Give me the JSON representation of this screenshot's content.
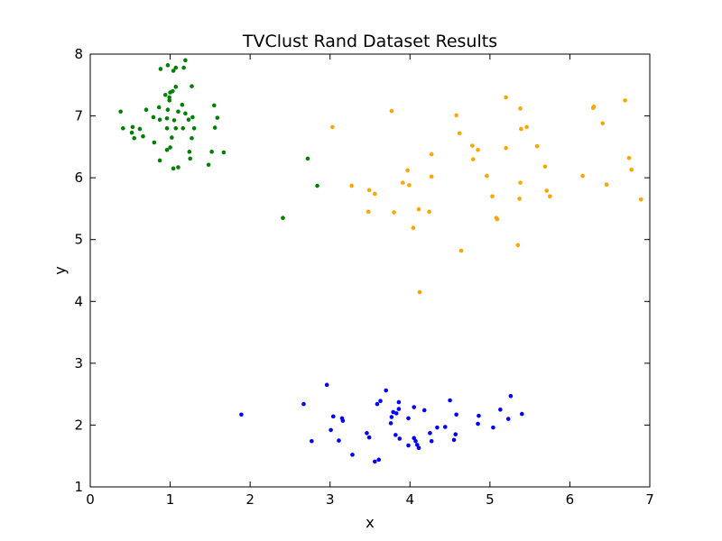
{
  "chart_data": {
    "type": "scatter",
    "title": "TVClust Rand Dataset Results",
    "xlabel": "x",
    "ylabel": "y",
    "xlim": [
      0,
      7
    ],
    "ylim": [
      1,
      8
    ],
    "xticks": [
      "0",
      "1",
      "2",
      "3",
      "4",
      "5",
      "6",
      "7"
    ],
    "yticks": [
      "1",
      "2",
      "3",
      "4",
      "5",
      "6",
      "7",
      "8"
    ],
    "grid": false,
    "legend": "none",
    "series": [
      {
        "color": "#008000",
        "points": [
          [
            0.88,
            7.76
          ],
          [
            0.97,
            7.82
          ],
          [
            1.07,
            7.78
          ],
          [
            1.17,
            7.78
          ],
          [
            1.19,
            7.9
          ],
          [
            1.04,
            7.73
          ],
          [
            1.27,
            7.48
          ],
          [
            1.07,
            7.47
          ],
          [
            1.03,
            7.4
          ],
          [
            0.99,
            7.3
          ],
          [
            0.94,
            7.34
          ],
          [
            1.0,
            7.38
          ],
          [
            0.38,
            7.07
          ],
          [
            0.7,
            7.1
          ],
          [
            0.86,
            7.14
          ],
          [
            0.97,
            7.1
          ],
          [
            0.99,
            7.25
          ],
          [
            1.1,
            7.07
          ],
          [
            1.15,
            7.18
          ],
          [
            1.19,
            7.04
          ],
          [
            1.28,
            6.98
          ],
          [
            1.55,
            7.17
          ],
          [
            1.59,
            6.97
          ],
          [
            0.79,
            6.98
          ],
          [
            0.87,
            6.94
          ],
          [
            0.96,
            6.96
          ],
          [
            1.05,
            6.93
          ],
          [
            1.23,
            6.94
          ],
          [
            0.41,
            6.8
          ],
          [
            0.53,
            6.82
          ],
          [
            0.62,
            6.79
          ],
          [
            0.52,
            6.73
          ],
          [
            0.55,
            6.64
          ],
          [
            0.66,
            6.67
          ],
          [
            0.96,
            6.8
          ],
          [
            1.07,
            6.8
          ],
          [
            1.16,
            6.8
          ],
          [
            1.3,
            6.8
          ],
          [
            1.56,
            6.81
          ],
          [
            0.8,
            6.57
          ],
          [
            1.02,
            6.65
          ],
          [
            1.27,
            6.64
          ],
          [
            0.96,
            6.45
          ],
          [
            1.0,
            6.49
          ],
          [
            1.24,
            6.42
          ],
          [
            1.52,
            6.42
          ],
          [
            1.67,
            6.41
          ],
          [
            0.87,
            6.28
          ],
          [
            1.25,
            6.31
          ],
          [
            1.48,
            6.21
          ],
          [
            1.04,
            6.15
          ],
          [
            1.1,
            6.17
          ],
          [
            2.72,
            6.31
          ],
          [
            2.84,
            5.87
          ],
          [
            2.41,
            5.35
          ]
        ]
      },
      {
        "color": "#ffa500",
        "points": [
          [
            5.2,
            7.3
          ],
          [
            3.77,
            7.08
          ],
          [
            5.38,
            7.12
          ],
          [
            6.29,
            7.13
          ],
          [
            6.3,
            7.15
          ],
          [
            6.69,
            7.25
          ],
          [
            4.58,
            7.01
          ],
          [
            3.03,
            6.82
          ],
          [
            5.46,
            6.82
          ],
          [
            5.39,
            6.79
          ],
          [
            6.41,
            6.88
          ],
          [
            4.62,
            6.72
          ],
          [
            4.78,
            6.52
          ],
          [
            4.85,
            6.45
          ],
          [
            5.59,
            6.51
          ],
          [
            5.2,
            6.48
          ],
          [
            4.27,
            6.38
          ],
          [
            4.79,
            6.3
          ],
          [
            6.74,
            6.32
          ],
          [
            5.69,
            6.18
          ],
          [
            6.77,
            6.13
          ],
          [
            3.97,
            6.12
          ],
          [
            4.27,
            6.02
          ],
          [
            4.96,
            6.03
          ],
          [
            6.16,
            6.03
          ],
          [
            3.91,
            5.92
          ],
          [
            3.99,
            5.88
          ],
          [
            5.38,
            5.92
          ],
          [
            6.46,
            5.89
          ],
          [
            3.27,
            5.87
          ],
          [
            3.49,
            5.8
          ],
          [
            3.56,
            5.74
          ],
          [
            5.71,
            5.79
          ],
          [
            5.75,
            5.7
          ],
          [
            5.03,
            5.7
          ],
          [
            5.37,
            5.66
          ],
          [
            6.89,
            5.65
          ],
          [
            4.11,
            5.49
          ],
          [
            3.48,
            5.45
          ],
          [
            3.8,
            5.44
          ],
          [
            4.24,
            5.45
          ],
          [
            5.08,
            5.35
          ],
          [
            5.09,
            5.33
          ],
          [
            4.04,
            5.19
          ],
          [
            5.35,
            4.91
          ],
          [
            4.64,
            4.82
          ],
          [
            4.12,
            4.15
          ]
        ]
      },
      {
        "color": "#0000ff",
        "points": [
          [
            1.89,
            2.17
          ],
          [
            2.67,
            2.34
          ],
          [
            2.96,
            2.65
          ],
          [
            3.04,
            2.14
          ],
          [
            3.15,
            2.11
          ],
          [
            3.16,
            2.07
          ],
          [
            3.01,
            1.92
          ],
          [
            2.77,
            1.74
          ],
          [
            3.11,
            1.75
          ],
          [
            3.28,
            1.52
          ],
          [
            3.56,
            1.41
          ],
          [
            3.61,
            1.44
          ],
          [
            3.59,
            2.34
          ],
          [
            3.63,
            2.39
          ],
          [
            3.7,
            2.56
          ],
          [
            3.76,
            2.03
          ],
          [
            3.77,
            2.13
          ],
          [
            3.79,
            2.21
          ],
          [
            3.83,
            2.19
          ],
          [
            3.86,
            2.26
          ],
          [
            3.86,
            2.37
          ],
          [
            3.46,
            1.87
          ],
          [
            3.49,
            1.8
          ],
          [
            3.82,
            1.84
          ],
          [
            3.87,
            1.78
          ],
          [
            3.98,
            2.11
          ],
          [
            4.05,
            2.29
          ],
          [
            4.18,
            2.24
          ],
          [
            4.25,
            1.87
          ],
          [
            4.27,
            1.74
          ],
          [
            4.34,
            1.96
          ],
          [
            4.05,
            1.79
          ],
          [
            4.07,
            1.74
          ],
          [
            4.09,
            1.68
          ],
          [
            4.11,
            1.63
          ],
          [
            3.98,
            1.67
          ],
          [
            4.44,
            1.97
          ],
          [
            4.5,
            2.4
          ],
          [
            4.58,
            2.17
          ],
          [
            4.57,
            1.85
          ],
          [
            4.55,
            1.76
          ],
          [
            4.86,
            2.15
          ],
          [
            4.85,
            2.02
          ],
          [
            5.04,
            1.96
          ],
          [
            5.13,
            2.25
          ],
          [
            5.23,
            2.1
          ],
          [
            5.26,
            2.47
          ],
          [
            5.4,
            2.18
          ]
        ]
      }
    ]
  }
}
